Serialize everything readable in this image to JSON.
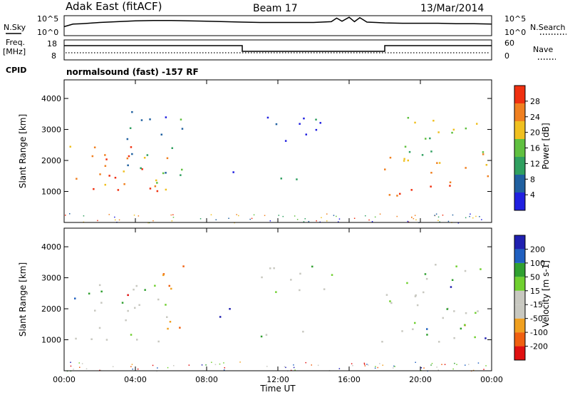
{
  "header": {
    "site": "Adak East (fitACF)",
    "beam": "Beam 17",
    "date": "13/Mar/2014"
  },
  "side_labels": {
    "nsky": "N.Sky",
    "freq": "Freq.",
    "freq_unit": "[MHz]",
    "cpid": "CPID",
    "nsearch": "N.Search",
    "nave": "Nave"
  },
  "cpid_text": "normalsound (fast) -157 RF",
  "chart_data": [
    {
      "type": "line",
      "panel": "noise",
      "yticks": [
        "10^5",
        "10^0"
      ],
      "x_hours": [
        0,
        0.5,
        1,
        1.5,
        2,
        3,
        4,
        5,
        6,
        7,
        8,
        9,
        10,
        11,
        12,
        13,
        14,
        15,
        15.3,
        15.6,
        16,
        16.3,
        16.6,
        17,
        17.5,
        18,
        19,
        20,
        21,
        22,
        23,
        24
      ],
      "series": [
        {
          "values": [
            0.45,
            0.58,
            0.6,
            0.63,
            0.66,
            0.7,
            0.74,
            0.76,
            0.76,
            0.74,
            0.72,
            0.7,
            0.68,
            0.66,
            0.66,
            0.66,
            0.66,
            0.7,
            0.88,
            0.72,
            0.92,
            0.7,
            0.9,
            0.68,
            0.66,
            0.64,
            0.62,
            0.62,
            0.62,
            0.6,
            0.6,
            0.58
          ]
        }
      ]
    },
    {
      "type": "line",
      "panel": "frequency",
      "yticks_left": [
        "18",
        "8"
      ],
      "yticks_right": [
        "60",
        "0"
      ],
      "segments": [
        {
          "from": 0,
          "to": 10,
          "freq_level": "high"
        },
        {
          "from": 10,
          "to": 18,
          "freq_level": "low"
        },
        {
          "from": 18,
          "to": 24,
          "freq_level": "high"
        }
      ]
    },
    {
      "type": "heatmap",
      "panel": "power",
      "ylabel": "Slant Range [km]",
      "yticks": [
        1000,
        2000,
        3000,
        4000
      ],
      "ylim": [
        0,
        4600
      ],
      "colorbar_label": "Power [dB]",
      "colorbar_ticks": [
        4,
        8,
        12,
        16,
        20,
        24,
        28
      ],
      "colors": [
        "#2020e0",
        "#2060a0",
        "#30a060",
        "#60c040",
        "#f0c020",
        "#f08020",
        "#f03010"
      ],
      "scatter_regions": [
        {
          "t0": 0.3,
          "t1": 6.2,
          "r0": 1000,
          "r1": 2600,
          "level": 0.75
        },
        {
          "t0": 0.3,
          "t1": 5.5,
          "r0": 900,
          "r1": 1250,
          "level": 0.95
        },
        {
          "t0": 3.5,
          "t1": 6.9,
          "r0": 1300,
          "r1": 3600,
          "level": 0.3
        },
        {
          "t0": 8.6,
          "t1": 9.8,
          "r0": 1550,
          "r1": 1750,
          "level": 0.2
        },
        {
          "t0": 11.0,
          "t1": 14.5,
          "r0": 2400,
          "r1": 3500,
          "level": 0.15
        },
        {
          "t0": 11.3,
          "t1": 14.0,
          "r0": 1200,
          "r1": 1450,
          "level": 0.15
        },
        {
          "t0": 17.8,
          "t1": 24.0,
          "r0": 1500,
          "r1": 2300,
          "level": 0.7
        },
        {
          "t0": 18.0,
          "t1": 24.0,
          "r0": 850,
          "r1": 1350,
          "level": 0.95
        },
        {
          "t0": 18.5,
          "t1": 23.5,
          "r0": 2200,
          "r1": 3500,
          "level": 0.5
        }
      ]
    },
    {
      "type": "heatmap",
      "panel": "velocity",
      "ylabel": "Slant Range [km]",
      "yticks": [
        1000,
        2000,
        3000,
        4000
      ],
      "ylim": [
        0,
        4600
      ],
      "colorbar_label": "Velocity [m s-1]",
      "colorbar_ticks": [
        -200,
        -100,
        -50,
        -15,
        15,
        50,
        100,
        200
      ],
      "colors": [
        "#e01010",
        "#f06010",
        "#f0a020",
        "#c8c8c0",
        "#c8c8c0",
        "#70d030",
        "#30a030",
        "#2060c0",
        "#2020b0"
      ],
      "scatter_regions": [
        {
          "t0": 0.3,
          "t1": 6.2,
          "r0": 850,
          "r1": 1300,
          "level": 0.5
        },
        {
          "t0": 0.3,
          "t1": 6.0,
          "r0": 1300,
          "r1": 2800,
          "level": 0.5
        },
        {
          "t0": 5.5,
          "t1": 7.0,
          "r0": 1300,
          "r1": 3500,
          "level": 0.2
        },
        {
          "t0": 8.0,
          "t1": 9.5,
          "r0": 1600,
          "r1": 2200,
          "level": 0.95
        },
        {
          "t0": 11.0,
          "t1": 14.5,
          "r0": 1100,
          "r1": 1400,
          "level": 0.65
        },
        {
          "t0": 11.0,
          "t1": 15.0,
          "r0": 2500,
          "r1": 3500,
          "level": 0.65
        },
        {
          "t0": 17.8,
          "t1": 24.0,
          "r0": 850,
          "r1": 1800,
          "level": 0.5
        },
        {
          "t0": 18.0,
          "t1": 23.5,
          "r0": 1800,
          "r1": 3500,
          "level": 0.6
        }
      ]
    }
  ],
  "x_axis": {
    "label": "Time UT",
    "ticks": [
      "00:00",
      "04:00",
      "08:00",
      "12:00",
      "16:00",
      "20:00",
      "00:00"
    ]
  }
}
